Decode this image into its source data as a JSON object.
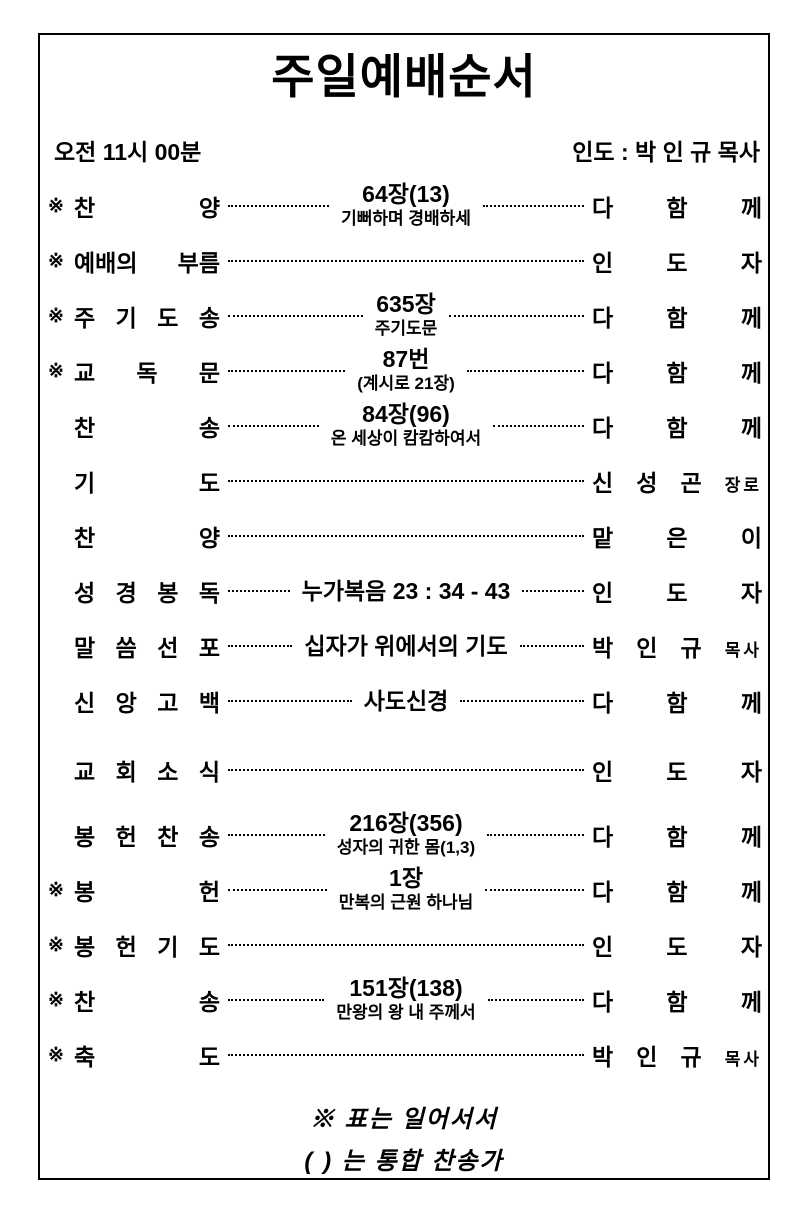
{
  "page": {
    "title": "주일예배순서",
    "time": "오전 11시 00분",
    "leader": "인도 : 박 인 규 목사",
    "footnote_stand": "※ 표는 일어서서",
    "footnote_hymnal": "( ) 는 통합 찬송가"
  },
  "rows": [
    {
      "marker": "※",
      "label": "찬 양",
      "center_main": "64장(13)",
      "center_sub": "기뻐하며 경배하세",
      "who": "다 함 께",
      "who_suffix": ""
    },
    {
      "marker": "※",
      "label": "예배의 부름",
      "who": "인 도 자",
      "who_suffix": ""
    },
    {
      "marker": "※",
      "label": "주 기 도 송",
      "center_main": "635장",
      "center_sub": "주기도문",
      "who": "다 함 께",
      "who_suffix": ""
    },
    {
      "marker": "※",
      "label": "교 독 문",
      "center_main": "87번",
      "center_sub": "(계시로 21장)",
      "who": "다 함 께",
      "who_suffix": ""
    },
    {
      "marker": "",
      "label": "찬 송",
      "center_main": "84장(96)",
      "center_sub": "온 세상이 캄캄하여서",
      "who": "다 함 께",
      "who_suffix": ""
    },
    {
      "marker": "",
      "label": "기 도",
      "who": "신 성 곤",
      "who_suffix": "장로"
    },
    {
      "marker": "",
      "label": "찬 양",
      "who": "맡 은 이",
      "who_suffix": ""
    },
    {
      "marker": "",
      "label": "성 경 봉 독",
      "center_main": "누가복음 23 : 34 - 43",
      "who": "인 도 자",
      "who_suffix": ""
    },
    {
      "marker": "",
      "label": "말 씀 선 포",
      "center_main": "십자가 위에서의 기도",
      "who": "박 인 규",
      "who_suffix": "목사"
    },
    {
      "marker": "",
      "label": "신 앙 고 백",
      "center_main": "사도신경",
      "who": "다 함 께",
      "who_suffix": ""
    },
    {
      "marker": "",
      "label": "교 회 소 식",
      "who": "인 도 자",
      "who_suffix": ""
    },
    {
      "marker": "",
      "label": "봉 헌 찬 송",
      "center_main": "216장(356)",
      "center_sub": "성자의 귀한 몸(1,3)",
      "who": "다 함 께",
      "who_suffix": ""
    },
    {
      "marker": "※",
      "label": "봉 헌",
      "center_main": "1장",
      "center_sub": "만복의 근원 하나님",
      "who": "다 함 께",
      "who_suffix": ""
    },
    {
      "marker": "※",
      "label": "봉 헌 기 도",
      "who": "인 도 자",
      "who_suffix": ""
    },
    {
      "marker": "※",
      "label": "찬 송",
      "center_main": "151장(138)",
      "center_sub": "만왕의 왕 내 주께서",
      "who": "다 함 께",
      "who_suffix": ""
    },
    {
      "marker": "※",
      "label": "축 도",
      "who": "박 인 규",
      "who_suffix": "목사"
    }
  ]
}
